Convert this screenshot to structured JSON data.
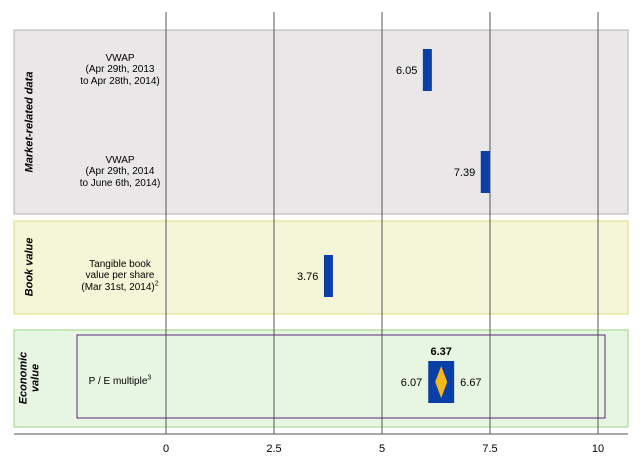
{
  "chart_data": {
    "type": "football-field",
    "x_ticks": [
      0,
      2.5,
      5,
      7.5,
      10
    ],
    "x_tick_labels": [
      "0",
      "2.5",
      "5",
      "7.5",
      "10"
    ],
    "xlim": [
      -3.5,
      10.75
    ],
    "sections": [
      {
        "name": "Market-related data",
        "color": "#e9e7e7",
        "border": "#b5b2b2",
        "rows": [
          {
            "label_lines": [
              "VWAP",
              "(Apr 29th, 2013",
              "to Apr 28th, 2014)"
            ],
            "value": 6.05,
            "value_label": "6.05"
          },
          {
            "label_lines": [
              "VWAP",
              "(Apr 29th, 2014",
              "to June 6th, 2014)"
            ],
            "value": 7.39,
            "value_label": "7.39"
          }
        ]
      },
      {
        "name": "Book value",
        "color": "#f5f5d7",
        "border": "#e0d97e",
        "rows": [
          {
            "label_lines": [
              "Tangible book",
              "value per share",
              "(Mar 31st, 2014)"
            ],
            "label_sup": "2",
            "value": 3.76,
            "value_label": "3.76"
          }
        ]
      },
      {
        "name_lines": [
          "Economic",
          "value"
        ],
        "color": "#e7f6e2",
        "border": "#9bd67d",
        "rows": [
          {
            "label_lines": [
              "P / E multiple"
            ],
            "label_sup": "3",
            "low": 6.07,
            "mid": 6.37,
            "high": 6.67,
            "low_label": "6.07",
            "mid_label": "6.37",
            "high_label": "6.67"
          }
        ]
      }
    ],
    "bar_color": "#0a3fa8",
    "marker_color": "#f5b718"
  }
}
